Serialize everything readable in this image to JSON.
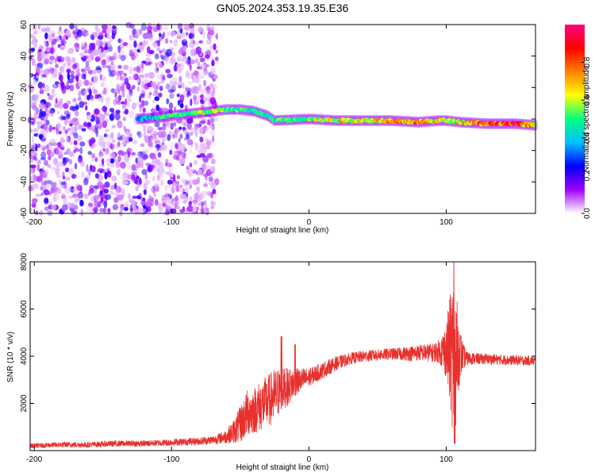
{
  "chart_data": [
    {
      "type": "heatmap",
      "title": "GN05.2024.353.19.35.E36",
      "xlabel": "Height of straight line (km)",
      "ylabel": "Frequency (Hz)",
      "xlim": [
        -203,
        165
      ],
      "ylim": [
        -60,
        60
      ],
      "xticks": [
        -200,
        -100,
        0,
        100
      ],
      "yticks": [
        60,
        40,
        20,
        0,
        -20,
        -40,
        -60
      ],
      "colorbar": {
        "label": "Normalized spectral amplitude",
        "range": [
          0,
          1
        ],
        "ticks": [
          0,
          0.2,
          0.4,
          0.6,
          0.8
        ],
        "colors": [
          "#ffffff",
          "#a000ff",
          "#0000ff",
          "#00c0ff",
          "#00ff80",
          "#ffff00",
          "#ff8000",
          "#ff0000",
          "#ff0080"
        ]
      },
      "noise_region_x": [
        -203,
        -67
      ],
      "ridge": {
        "x": [
          -125,
          -110,
          -100,
          -90,
          -80,
          -70,
          -60,
          -50,
          -40,
          -30,
          -25,
          0,
          20,
          40,
          60,
          80,
          95,
          100,
          110,
          130,
          150,
          165
        ],
        "freq": [
          0,
          1,
          2,
          3,
          4,
          5,
          6,
          6,
          5,
          2,
          -1,
          0,
          -1,
          -1,
          -1,
          -2,
          -1,
          -1,
          -2,
          -3,
          -3,
          -4
        ],
        "amplitude": [
          0.4,
          0.5,
          0.55,
          0.6,
          0.6,
          0.65,
          0.55,
          0.55,
          0.5,
          0.5,
          0.55,
          0.6,
          0.7,
          0.7,
          0.75,
          0.8,
          0.7,
          0.6,
          0.75,
          0.9,
          0.95,
          0.7
        ]
      }
    },
    {
      "type": "line",
      "title": "",
      "xlabel": "Height of straight line (km)",
      "ylabel": "SNR (10 * v/v)",
      "xlim": [
        -203,
        165
      ],
      "ylim": [
        0,
        8000
      ],
      "xticks": [
        -200,
        -100,
        0,
        100
      ],
      "yticks": [
        2000,
        4000,
        6000,
        8000
      ],
      "color": "#e8302e",
      "series": [
        {
          "x": [
            -203,
            -180,
            -160,
            -140,
            -120,
            -100,
            -80,
            -70,
            -60,
            -55,
            -50,
            -45,
            -40,
            -35,
            -30,
            -25,
            -20,
            -15,
            -10,
            -5,
            0,
            10,
            20,
            30,
            40,
            50,
            60,
            70,
            80,
            90,
            95,
            100,
            103,
            105,
            107,
            109,
            112,
            115,
            120,
            140,
            165
          ],
          "y": [
            200,
            250,
            250,
            300,
            300,
            350,
            400,
            450,
            600,
            800,
            1100,
            1600,
            1700,
            1900,
            2100,
            2300,
            2600,
            2700,
            2900,
            3000,
            3100,
            3400,
            3700,
            3900,
            4000,
            4050,
            4100,
            4100,
            4150,
            4150,
            4200,
            4250,
            4200,
            4100,
            4000,
            4100,
            4000,
            3900,
            3900,
            3850,
            3800
          ],
          "noise": [
            100,
            120,
            120,
            130,
            130,
            150,
            160,
            180,
            300,
            500,
            800,
            1000,
            1000,
            1100,
            1100,
            1200,
            900,
            800,
            600,
            500,
            400,
            350,
            300,
            250,
            250,
            250,
            250,
            300,
            350,
            400,
            500,
            1200,
            2500,
            3500,
            3000,
            1500,
            600,
            300,
            250,
            220,
            200
          ],
          "peaks": [
            {
              "x": -20,
              "y": 4850
            },
            {
              "x": -10,
              "y": 4500
            },
            {
              "x": 106,
              "y": 8100
            },
            {
              "x": 106,
              "y": 300
            }
          ]
        }
      ]
    }
  ]
}
